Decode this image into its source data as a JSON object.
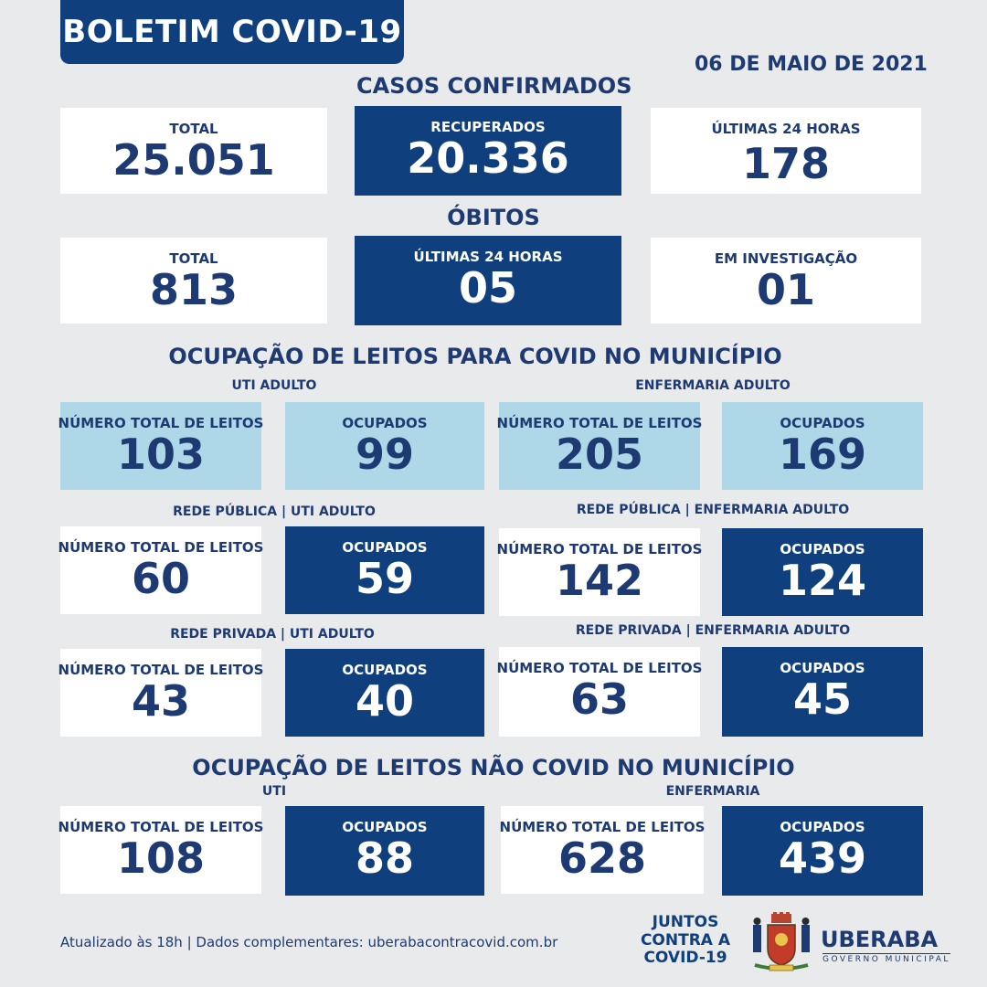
{
  "header": {
    "title": "BOLETIM COVID-19",
    "date": "06 DE MAIO DE 2021"
  },
  "casos": {
    "title": "CASOS CONFIRMADOS",
    "total_label": "TOTAL",
    "total_value": "25.051",
    "recuperados_label": "RECUPERADOS",
    "recuperados_value": "20.336",
    "ultimas_label": "ÚLTIMAS 24 HORAS",
    "ultimas_value": "178"
  },
  "obitos": {
    "title": "ÓBITOS",
    "total_label": "TOTAL",
    "total_value": "813",
    "ultimas_label": "ÚLTIMAS 24 HORAS",
    "ultimas_value": "05",
    "investigacao_label": "EM INVESTIGAÇÃO",
    "investigacao_value": "01"
  },
  "covid": {
    "title": "OCUPAÇÃO DE LEITOS PARA COVID NO MUNICÍPIO",
    "uti_label": "UTI ADULTO",
    "enf_label": "ENFERMARIA ADULTO",
    "uti_total_label": "NÚMERO TOTAL DE LEITOS",
    "uti_total": "103",
    "uti_ocup_label": "OCUPADOS",
    "uti_ocup": "99",
    "enf_total_label": "NÚMERO TOTAL DE LEITOS",
    "enf_total": "205",
    "enf_ocup_label": "OCUPADOS",
    "enf_ocup": "169",
    "pub_uti_label": "REDE PÚBLICA | UTI ADULTO",
    "pub_uti_total_label": "NÚMERO TOTAL DE LEITOS",
    "pub_uti_total": "60",
    "pub_uti_ocup_label": "OCUPADOS",
    "pub_uti_ocup": "59",
    "pub_enf_label": "REDE PÚBLICA | ENFERMARIA ADULTO",
    "pub_enf_total_label": "NÚMERO TOTAL DE LEITOS",
    "pub_enf_total": "142",
    "pub_enf_ocup_label": "OCUPADOS",
    "pub_enf_ocup": "124",
    "priv_uti_label": "REDE PRIVADA | UTI ADULTO",
    "priv_uti_total_label": "NÚMERO TOTAL DE LEITOS",
    "priv_uti_total": "43",
    "priv_uti_ocup_label": "OCUPADOS",
    "priv_uti_ocup": "40",
    "priv_enf_label": "REDE PRIVADA | ENFERMARIA ADULTO",
    "priv_enf_total_label": "NÚMERO TOTAL DE LEITOS",
    "priv_enf_total": "63",
    "priv_enf_ocup_label": "OCUPADOS",
    "priv_enf_ocup": "45"
  },
  "naocovid": {
    "title": "OCUPAÇÃO DE LEITOS NÃO COVID NO MUNICÍPIO",
    "uti_label": "UTI",
    "enf_label": "ENFERMARIA",
    "uti_total_label": "NÚMERO TOTAL DE LEITOS",
    "uti_total": "108",
    "uti_ocup_label": "OCUPADOS",
    "uti_ocup": "88",
    "enf_total_label": "NÚMERO TOTAL DE LEITOS",
    "enf_total": "628",
    "enf_ocup_label": "OCUPADOS",
    "enf_ocup": "439"
  },
  "footer": {
    "note": "Atualizado às 18h | Dados complementares: uberabacontracovid.com.br",
    "juntos_1": "JUNTOS",
    "juntos_2": "CONTRA A",
    "juntos_3": "COVID-19",
    "city": "UBERABA",
    "gov": "GOVERNO MUNICIPAL",
    "crest_icon": "city-coat-of-arms-icon"
  },
  "colors": {
    "dark": "#0f3f7d",
    "light": "#aed8e8",
    "text": "#1e3a72",
    "background": "#e9eaec"
  }
}
